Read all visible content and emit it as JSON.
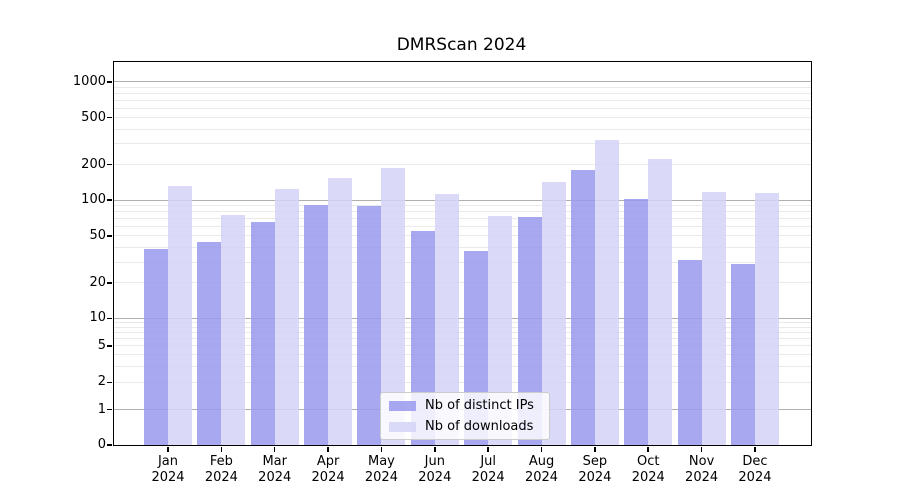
{
  "chart_data": {
    "type": "bar",
    "title": "DMRScan 2024",
    "categories": [
      "Jan",
      "Feb",
      "Mar",
      "Apr",
      "May",
      "Jun",
      "Jul",
      "Aug",
      "Sep",
      "Oct",
      "Nov",
      "Dec"
    ],
    "x_tick_year": "2024",
    "series": [
      {
        "name": "Nb of distinct IPs",
        "color": "#9999ee",
        "values": [
          39,
          44,
          66,
          91,
          89,
          55,
          37,
          72,
          180,
          102,
          31,
          29
        ]
      },
      {
        "name": "Nb of downloads",
        "color": "#d4d4f7",
        "values": [
          132,
          75,
          125,
          155,
          188,
          113,
          73,
          142,
          325,
          222,
          118,
          114
        ]
      }
    ],
    "y_axis": {
      "scale": "symlog",
      "ticks": [
        0,
        1,
        2,
        5,
        10,
        20,
        50,
        100,
        200,
        500,
        1000
      ],
      "major_grid_values": [
        1,
        10,
        100,
        1000
      ],
      "minor_grid_values": [
        2,
        3,
        4,
        5,
        6,
        7,
        8,
        9,
        20,
        30,
        40,
        50,
        60,
        70,
        80,
        90,
        200,
        300,
        400,
        500,
        600,
        700,
        800,
        900
      ],
      "anchor_fractions": {
        "0": 0.0,
        "1": 0.0921,
        "10": 0.3303,
        "100": 0.6392,
        "1000": 0.9479
      }
    },
    "grid": "on",
    "legend": {
      "position": "lower center"
    }
  },
  "colors": {
    "major_grid": "#b0b0b0",
    "minor_grid": "#eaeaea",
    "axis": "#000000",
    "background": "#ffffff",
    "legend_border": "#cccccc"
  }
}
